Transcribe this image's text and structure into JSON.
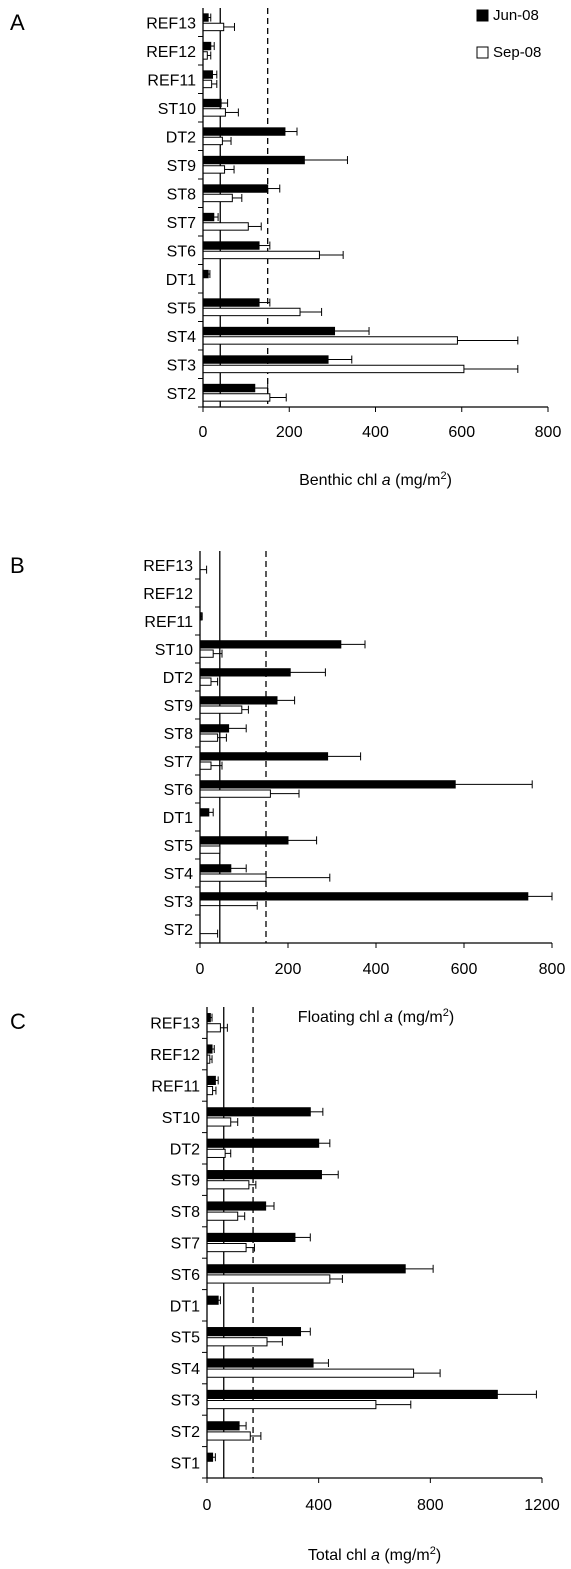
{
  "legend": {
    "jun_label": "Jun-08",
    "sep_label": "Sep-08",
    "jun_color": "#000000",
    "sep_color": "#ffffff"
  },
  "chart_data": [
    {
      "type": "bar",
      "orientation": "horizontal",
      "panel_label": "A",
      "xlabel_prefix": "Benthic chl ",
      "xlabel_var": "a",
      "xlabel_unit": " (mg/m",
      "xlabel_sup": "2",
      "xlabel_close": ")",
      "xlim": [
        0,
        800
      ],
      "xticks": [
        0,
        200,
        400,
        600,
        800
      ],
      "reference_lines": {
        "solid": 40,
        "dashed": 150
      },
      "categories": [
        "REF13",
        "REF12",
        "REF11",
        "ST10",
        "DT2",
        "ST9",
        "ST8",
        "ST7",
        "ST6",
        "DT1",
        "ST5",
        "ST4",
        "ST3",
        "ST2"
      ],
      "series": [
        {
          "name": "Jun-08",
          "values": [
            12,
            18,
            22,
            42,
            190,
            235,
            150,
            25,
            130,
            12,
            130,
            305,
            290,
            120
          ],
          "errors": [
            6,
            8,
            10,
            15,
            28,
            100,
            28,
            10,
            25,
            4,
            25,
            80,
            55,
            30
          ]
        },
        {
          "name": "Sep-08",
          "values": [
            48,
            10,
            20,
            52,
            45,
            50,
            68,
            105,
            270,
            0,
            225,
            590,
            605,
            155
          ],
          "errors": [
            25,
            8,
            12,
            30,
            20,
            22,
            22,
            30,
            55,
            0,
            50,
            140,
            125,
            38
          ]
        }
      ]
    },
    {
      "type": "bar",
      "orientation": "horizontal",
      "panel_label": "B",
      "xlabel_prefix": "Floating chl ",
      "xlabel_var": "a",
      "xlabel_unit": " (mg/m",
      "xlabel_sup": "2",
      "xlabel_close": ")",
      "xlim": [
        0,
        800
      ],
      "xticks": [
        0,
        200,
        400,
        600,
        800
      ],
      "reference_lines": {
        "solid": 45,
        "dashed": 150
      },
      "categories": [
        "REF13",
        "REF12",
        "REF11",
        "ST10",
        "DT2",
        "ST9",
        "ST8",
        "ST7",
        "ST6",
        "DT1",
        "ST5",
        "ST4",
        "ST3",
        "ST2"
      ],
      "series": [
        {
          "name": "Jun-08",
          "values": [
            0,
            0,
            3,
            320,
            205,
            175,
            65,
            290,
            580,
            20,
            200,
            70,
            745,
            0
          ],
          "errors": [
            0,
            0,
            2,
            55,
            80,
            40,
            40,
            75,
            175,
            10,
            65,
            35,
            55,
            0
          ]
        },
        {
          "name": "Sep-08",
          "values": [
            0,
            0,
            0,
            30,
            25,
            95,
            40,
            25,
            160,
            0,
            45,
            150,
            0,
            0
          ],
          "errors": [
            15,
            0,
            0,
            20,
            15,
            15,
            20,
            25,
            65,
            0,
            0,
            145,
            130,
            40
          ]
        }
      ]
    },
    {
      "type": "bar",
      "orientation": "horizontal",
      "panel_label": "C",
      "xlabel_prefix": "Total chl ",
      "xlabel_var": "a",
      "xlabel_unit": " (mg/m",
      "xlabel_sup": "2",
      "xlabel_close": ")",
      "xlim": [
        0,
        1200
      ],
      "xticks": [
        0,
        400,
        800,
        1200
      ],
      "reference_lines": {
        "solid": 60,
        "dashed": 165
      },
      "categories": [
        "REF13",
        "REF12",
        "REF11",
        "ST10",
        "DT2",
        "ST9",
        "ST8",
        "ST7",
        "ST6",
        "DT1",
        "ST5",
        "ST4",
        "ST3",
        "ST2",
        "ST1"
      ],
      "series": [
        {
          "name": "Jun-08",
          "values": [
            12,
            18,
            30,
            370,
            400,
            410,
            210,
            315,
            710,
            40,
            335,
            380,
            1040,
            115,
            20
          ],
          "errors": [
            6,
            8,
            10,
            45,
            40,
            60,
            30,
            55,
            100,
            8,
            35,
            55,
            140,
            25,
            10
          ]
        },
        {
          "name": "Sep-08",
          "values": [
            48,
            10,
            20,
            85,
            65,
            150,
            110,
            140,
            440,
            0,
            215,
            740,
            605,
            155,
            0
          ],
          "errors": [
            25,
            8,
            12,
            25,
            20,
            25,
            25,
            30,
            45,
            0,
            55,
            95,
            125,
            38,
            0
          ]
        }
      ]
    }
  ]
}
